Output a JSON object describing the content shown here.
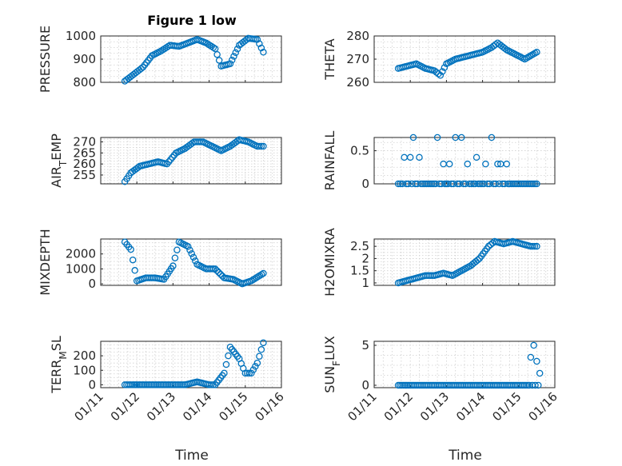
{
  "title": "Figure 1 low",
  "xlabel": "Time",
  "x_tick_labels": [
    "01/11",
    "01/12",
    "01/13",
    "01/14",
    "01/15",
    "01/16"
  ],
  "marker_color": "#0072BD",
  "chart_data": [
    {
      "type": "scatter",
      "ylabel": "PRESSURE",
      "ylabel_sub": "",
      "ylabel_tail": "",
      "ylim": [
        800,
        1000
      ],
      "yticks": [
        800,
        900,
        1000
      ],
      "title": "Figure 1 low",
      "grid": true,
      "x": [
        "01/11 16:00",
        "01/11 22:00",
        "01/12 04:00",
        "01/12 10:00",
        "01/12 16:00",
        "01/12 22:00",
        "01/13 04:00",
        "01/13 10:00",
        "01/13 16:00",
        "01/13 22:00",
        "01/14 04:00",
        "01/14 08:00",
        "01/14 14:00",
        "01/14 20:00",
        "01/15 02:00",
        "01/15 08:00",
        "01/15 12:00"
      ],
      "y": [
        805,
        835,
        865,
        915,
        935,
        960,
        955,
        970,
        985,
        970,
        945,
        870,
        880,
        960,
        990,
        985,
        930
      ]
    },
    {
      "type": "scatter",
      "ylabel": "THETA",
      "ylabel_sub": "",
      "ylabel_tail": "",
      "ylim": [
        260,
        280
      ],
      "yticks": [
        260,
        270,
        280
      ],
      "grid": true,
      "x": [
        "01/11 16:00",
        "01/11 22:00",
        "01/12 04:00",
        "01/12 10:00",
        "01/12 16:00",
        "01/12 20:00",
        "01/13 00:00",
        "01/13 06:00",
        "01/13 12:00",
        "01/13 18:00",
        "01/14 00:00",
        "01/14 06:00",
        "01/14 10:00",
        "01/14 16:00",
        "01/14 22:00",
        "01/15 04:00",
        "01/15 12:00"
      ],
      "y": [
        266,
        267,
        268,
        266,
        265,
        263,
        268,
        270,
        271,
        272,
        273,
        275,
        277,
        274,
        272,
        270,
        273
      ]
    },
    {
      "type": "scatter",
      "ylabel": "AIR",
      "ylabel_sub": "T",
      "ylabel_tail": "EMP",
      "ylim": [
        251,
        272
      ],
      "yticks": [
        255,
        260,
        265,
        270
      ],
      "grid": true,
      "x": [
        "01/11 16:00",
        "01/11 20:00",
        "01/12 02:00",
        "01/12 08:00",
        "01/12 14:00",
        "01/12 20:00",
        "01/13 02:00",
        "01/13 08:00",
        "01/13 14:00",
        "01/13 20:00",
        "01/14 02:00",
        "01/14 08:00",
        "01/14 14:00",
        "01/14 20:00",
        "01/15 02:00",
        "01/15 08:00",
        "01/15 12:00"
      ],
      "y": [
        252,
        256,
        259,
        260,
        261,
        260,
        265,
        267,
        270,
        270,
        268,
        266,
        268,
        271,
        270,
        268,
        268
      ]
    },
    {
      "type": "scatter",
      "ylabel": "RAINFALL",
      "ylabel_sub": "",
      "ylabel_tail": "",
      "ylim": [
        0,
        0.7
      ],
      "yticks": [
        0,
        0.5
      ],
      "grid": true,
      "x": [
        "01/11 16:00",
        "01/11 20:00",
        "01/12 00:00",
        "01/12 02:00",
        "01/12 06:00",
        "01/12 18:00",
        "01/12 22:00",
        "01/13 02:00",
        "01/13 06:00",
        "01/13 10:00",
        "01/13 14:00",
        "01/13 20:00",
        "01/14 02:00",
        "01/14 06:00",
        "01/14 10:00",
        "01/14 12:00",
        "01/14 16:00",
        "01/15 00:00",
        "01/15 06:00",
        "01/15 12:00",
        "01/12 12:00",
        "01/13 00:00",
        "01/13 18:00",
        "01/14 18:00"
      ],
      "y": [
        0,
        0.4,
        0.4,
        0.7,
        0.4,
        0.7,
        0.3,
        0.3,
        0.7,
        0.7,
        0.3,
        0.4,
        0.3,
        0.7,
        0.3,
        0.3,
        0.3,
        0,
        0,
        0,
        0,
        0,
        0,
        0
      ]
    },
    {
      "type": "scatter",
      "ylabel": "MIXDEPTH",
      "ylabel_sub": "",
      "ylabel_tail": "",
      "ylim": [
        -100,
        3000
      ],
      "yticks": [
        0,
        1000,
        2000
      ],
      "grid": true,
      "x": [
        "01/11 16:00",
        "01/11 20:00",
        "01/12 00:00",
        "01/12 06:00",
        "01/12 12:00",
        "01/12 18:00",
        "01/13 00:00",
        "01/13 04:00",
        "01/13 10:00",
        "01/13 16:00",
        "01/13 22:00",
        "01/14 04:00",
        "01/14 10:00",
        "01/14 16:00",
        "01/14 22:00",
        "01/15 04:00",
        "01/15 12:00"
      ],
      "y": [
        2800,
        2300,
        200,
        400,
        400,
        300,
        1200,
        2800,
        2500,
        1300,
        1000,
        1000,
        400,
        300,
        0,
        200,
        700
      ]
    },
    {
      "type": "scatter",
      "ylabel": "H2OMIXRA",
      "ylabel_sub": "",
      "ylabel_tail": "",
      "ylim": [
        0.9,
        2.8
      ],
      "yticks": [
        1,
        1.5,
        2,
        2.5
      ],
      "grid": true,
      "x": [
        "01/11 16:00",
        "01/11 22:00",
        "01/12 04:00",
        "01/12 10:00",
        "01/12 16:00",
        "01/12 22:00",
        "01/13 04:00",
        "01/13 10:00",
        "01/13 16:00",
        "01/13 22:00",
        "01/14 04:00",
        "01/14 08:00",
        "01/14 14:00",
        "01/14 20:00",
        "01/15 02:00",
        "01/15 08:00",
        "01/15 12:00"
      ],
      "y": [
        1.0,
        1.1,
        1.2,
        1.3,
        1.3,
        1.4,
        1.3,
        1.5,
        1.7,
        2.0,
        2.5,
        2.7,
        2.6,
        2.7,
        2.6,
        2.5,
        2.5
      ]
    },
    {
      "type": "scatter",
      "ylabel": "TERR",
      "ylabel_sub": "M",
      "ylabel_tail": "SL",
      "ylim": [
        -20,
        300
      ],
      "yticks": [
        0,
        100,
        200
      ],
      "grid": true,
      "x": [
        "01/11 16:00",
        "01/12 00:00",
        "01/12 08:00",
        "01/12 16:00",
        "01/13 00:00",
        "01/13 08:00",
        "01/13 16:00",
        "01/14 00:00",
        "01/14 04:00",
        "01/14 10:00",
        "01/14 14:00",
        "01/14 20:00",
        "01/15 00:00",
        "01/15 04:00",
        "01/15 08:00",
        "01/15 12:00",
        "01/11 22:00"
      ],
      "y": [
        0,
        0,
        0,
        0,
        0,
        0,
        20,
        0,
        0,
        80,
        260,
        180,
        80,
        80,
        150,
        290,
        0
      ]
    },
    {
      "type": "scatter",
      "ylabel": "SUN",
      "ylabel_sub": "F",
      "ylabel_tail": "LUX",
      "ylim": [
        -0.3,
        5.5
      ],
      "yticks": [
        0,
        5
      ],
      "grid": true,
      "x": [
        "01/11 16:00",
        "01/12 00:00",
        "01/12 12:00",
        "01/13 00:00",
        "01/13 12:00",
        "01/14 00:00",
        "01/14 12:00",
        "01/15 00:00",
        "01/15 06:00",
        "01/15 08:00",
        "01/15 10:00",
        "01/15 12:00",
        "01/15 14:00"
      ],
      "y": [
        0,
        0,
        0,
        0,
        0,
        0,
        0,
        0,
        0,
        3.5,
        5,
        3,
        1.5
      ]
    }
  ]
}
